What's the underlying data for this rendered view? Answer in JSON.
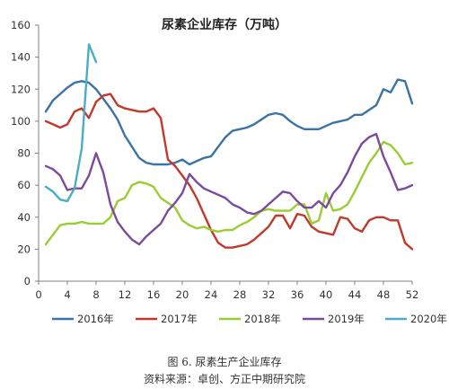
{
  "chart_data": {
    "type": "line",
    "title": "尿素企业库存（万吨）",
    "xlabel": "",
    "ylabel": "",
    "xlim": [
      0,
      52
    ],
    "ylim": [
      0,
      160
    ],
    "xticks": [
      0,
      4,
      8,
      12,
      16,
      20,
      24,
      28,
      32,
      36,
      40,
      44,
      48,
      52
    ],
    "yticks": [
      0,
      20,
      40,
      60,
      80,
      100,
      120,
      140,
      160
    ],
    "grid": false,
    "legend_position": "bottom",
    "series": [
      {
        "name": "2016年",
        "color": "#3a73a6",
        "x": [
          1,
          2,
          3,
          4,
          5,
          6,
          7,
          8,
          9,
          10,
          11,
          12,
          13,
          14,
          15,
          16,
          17,
          18,
          19,
          20,
          21,
          22,
          23,
          24,
          25,
          26,
          27,
          28,
          29,
          30,
          31,
          32,
          33,
          34,
          35,
          36,
          37,
          38,
          39,
          40,
          41,
          42,
          43,
          44,
          45,
          46,
          47,
          48,
          49,
          50,
          51,
          52
        ],
        "y": [
          106,
          113,
          117,
          121,
          124,
          125,
          124,
          120,
          114,
          108,
          101,
          91,
          84,
          77,
          74,
          73,
          73,
          73,
          74,
          76,
          73,
          75,
          77,
          78,
          84,
          90,
          94,
          95,
          96,
          98,
          101,
          104,
          105,
          104,
          100,
          97,
          95,
          95,
          95,
          97,
          99,
          100,
          101,
          104,
          104,
          107,
          110,
          120,
          118,
          126,
          125,
          111
        ]
      },
      {
        "name": "2017年",
        "color": "#c0392b",
        "x": [
          1,
          2,
          3,
          4,
          5,
          6,
          7,
          8,
          9,
          10,
          11,
          12,
          13,
          14,
          15,
          16,
          17,
          18,
          19,
          20,
          21,
          22,
          23,
          24,
          25,
          26,
          27,
          28,
          29,
          30,
          31,
          32,
          33,
          34,
          35,
          36,
          37,
          38,
          39,
          40,
          41,
          42,
          43,
          44,
          45,
          46,
          47,
          48,
          49,
          50,
          51,
          52
        ],
        "y": [
          100,
          98,
          96,
          98,
          106,
          108,
          102,
          112,
          116,
          117,
          110,
          108,
          107,
          106,
          106,
          108,
          102,
          76,
          72,
          66,
          60,
          52,
          42,
          32,
          24,
          21,
          21,
          22,
          23,
          26,
          30,
          34,
          41,
          41,
          33,
          42,
          41,
          34,
          31,
          30,
          29,
          40,
          39,
          33,
          31,
          38,
          40,
          40,
          38,
          38,
          24,
          20
        ]
      },
      {
        "name": "2018年",
        "color": "#9acd32",
        "x": [
          1,
          2,
          3,
          4,
          5,
          6,
          7,
          8,
          9,
          10,
          11,
          12,
          13,
          14,
          15,
          16,
          17,
          18,
          19,
          20,
          21,
          22,
          23,
          24,
          25,
          26,
          27,
          28,
          29,
          30,
          31,
          32,
          33,
          34,
          35,
          36,
          37,
          38,
          39,
          40,
          41,
          42,
          43,
          44,
          45,
          46,
          47,
          48,
          49,
          50,
          51,
          52
        ],
        "y": [
          23,
          29,
          35,
          36,
          36,
          37,
          36,
          36,
          36,
          40,
          50,
          52,
          60,
          62,
          61,
          59,
          52,
          49,
          46,
          38,
          35,
          33,
          34,
          32,
          31,
          32,
          32,
          35,
          37,
          40,
          44,
          45,
          44,
          44,
          44,
          48,
          48,
          36,
          38,
          55,
          44,
          45,
          48,
          56,
          65,
          74,
          80,
          87,
          85,
          80,
          73,
          74
        ]
      },
      {
        "name": "2019年",
        "color": "#7b4a9b",
        "x": [
          1,
          2,
          3,
          4,
          5,
          6,
          7,
          8,
          9,
          10,
          11,
          12,
          13,
          14,
          15,
          16,
          17,
          18,
          19,
          20,
          21,
          22,
          23,
          24,
          25,
          26,
          27,
          28,
          29,
          30,
          31,
          32,
          33,
          34,
          35,
          36,
          37,
          38,
          39,
          40,
          41,
          42,
          43,
          44,
          45,
          46,
          47,
          48,
          49,
          50,
          51,
          52
        ],
        "y": [
          72,
          70,
          66,
          57,
          58,
          58,
          66,
          80,
          68,
          48,
          37,
          31,
          26,
          23,
          28,
          32,
          36,
          44,
          49,
          55,
          67,
          62,
          58,
          56,
          54,
          52,
          48,
          46,
          43,
          42,
          44,
          48,
          52,
          56,
          55,
          50,
          46,
          46,
          50,
          46,
          55,
          60,
          68,
          78,
          86,
          90,
          92,
          78,
          68,
          57,
          58,
          60
        ]
      },
      {
        "name": "2020年",
        "color": "#4bacc6",
        "x": [
          1,
          2,
          3,
          4,
          5,
          6,
          7,
          8
        ],
        "y": [
          59,
          56,
          51,
          50,
          58,
          83,
          148,
          137
        ]
      }
    ]
  },
  "caption": {
    "title": "图 6. 尿素生产企业库存",
    "source": "资料来源：卓创、方正中期研究院"
  }
}
